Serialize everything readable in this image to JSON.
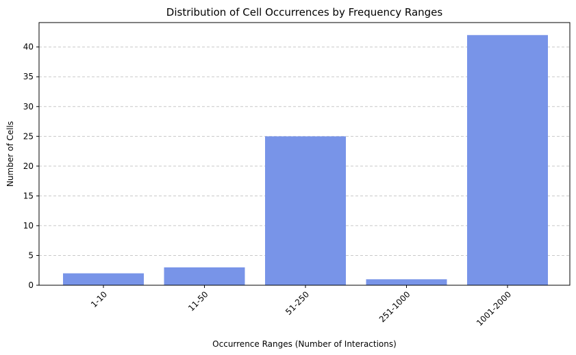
{
  "chart_data": {
    "type": "bar",
    "title": "Distribution of Cell Occurrences by Frequency Ranges",
    "xlabel": "Occurrence Ranges (Number of Interactions)",
    "ylabel": "Number of Cells",
    "categories": [
      "1-10",
      "11-50",
      "51-250",
      "251-1000",
      "1001-2000"
    ],
    "values": [
      2,
      3,
      25,
      1,
      42
    ],
    "ylim": [
      0,
      44.1
    ],
    "yticks": [
      0,
      5,
      10,
      15,
      20,
      25,
      30,
      35,
      40
    ],
    "grid": "y",
    "x_tick_rotation": 45,
    "colors": {
      "bar": "#7894e8",
      "grid": "#c8c8c8",
      "axis": "#000000"
    }
  }
}
